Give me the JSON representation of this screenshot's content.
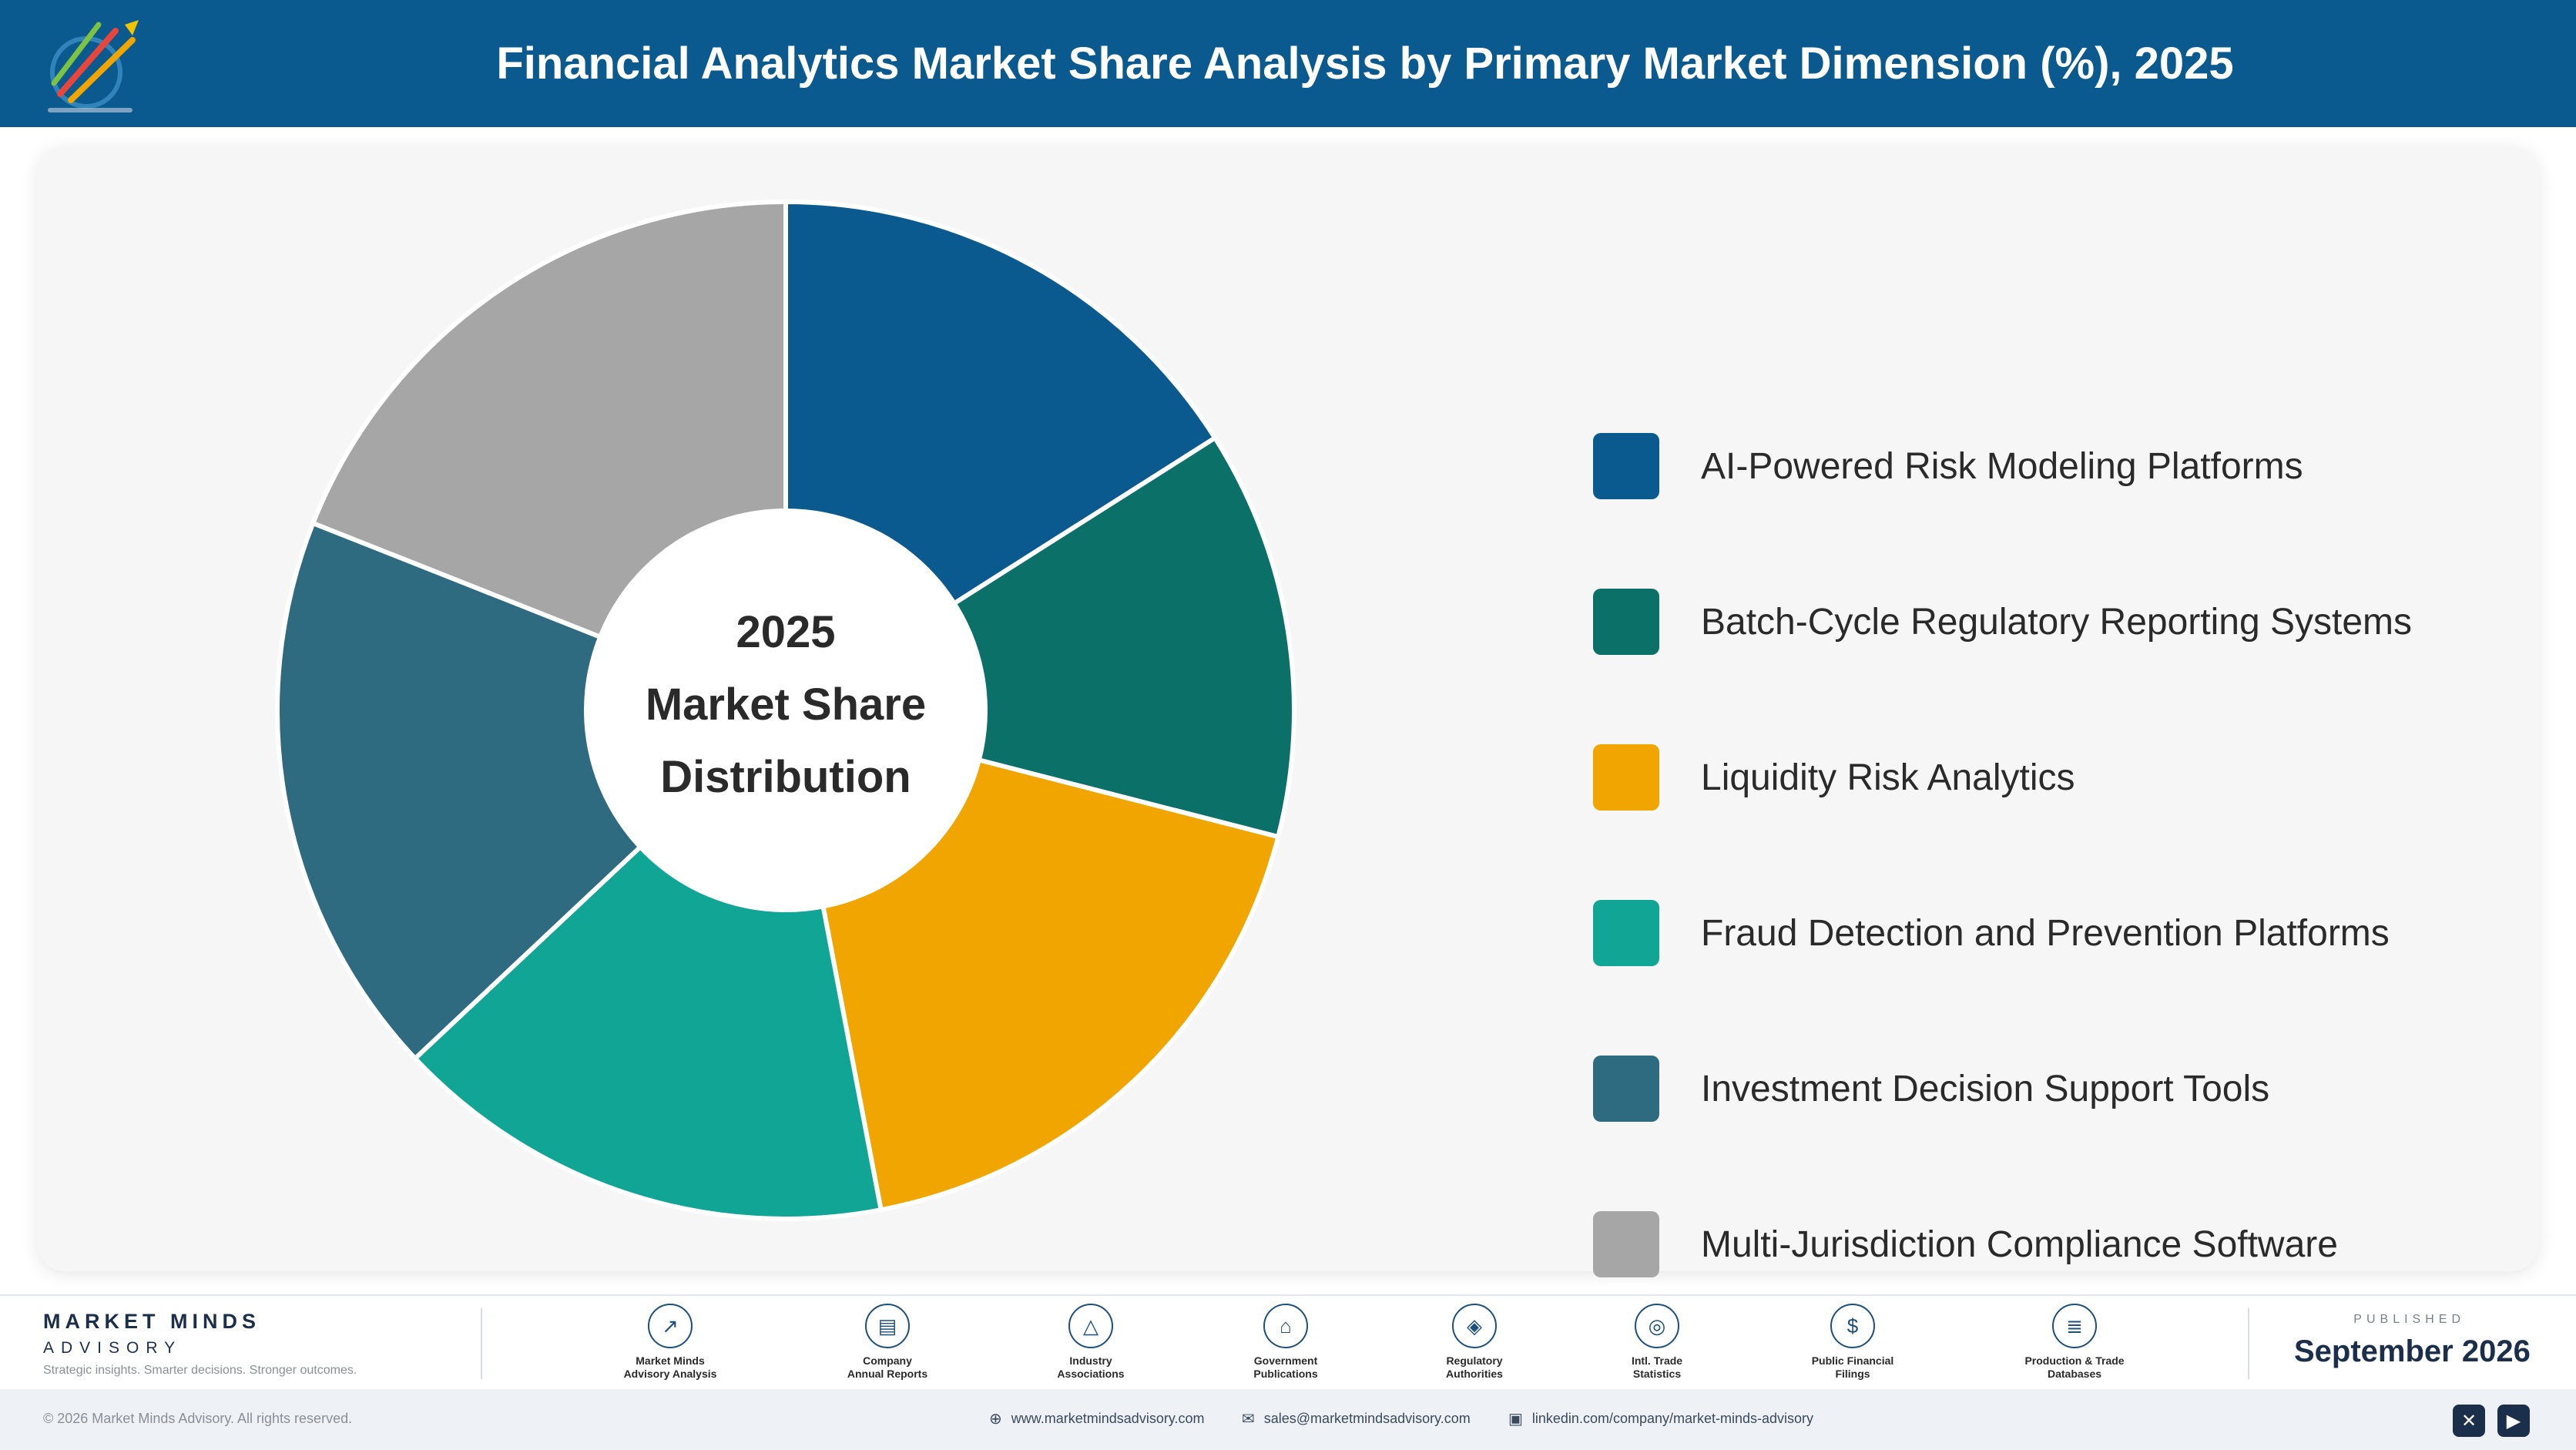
{
  "header": {
    "title": "Financial Analytics Market Share Analysis by Primary Market Dimension (%), 2025"
  },
  "chart_data": {
    "type": "pie",
    "title": "Financial Analytics Market Share Analysis by Primary Market Dimension (%), 2025",
    "center_label": [
      "2025",
      "Market Share",
      "Distribution"
    ],
    "legend_position": "right",
    "categories": [
      "AI-Powered Risk Modeling Platforms",
      "Batch-Cycle Regulatory Reporting Systems",
      "Liquidity Risk Analytics",
      "Fraud Detection and Prevention Platforms",
      "Investment Decision Support Tools",
      "Multi-Jurisdiction Compliance Software"
    ],
    "values": [
      16.0,
      13.0,
      18.0,
      16.0,
      18.0,
      19.0
    ],
    "colors": [
      "#0a5a8f",
      "#0b7168",
      "#f0a500",
      "#11a596",
      "#2e6b80",
      "#a6a6a6"
    ]
  },
  "footer": {
    "brand_name": "MARKET MINDS",
    "brand_sub": "ADVISORY",
    "brand_tagline": "Strategic insights. Smarter decisions. Stronger outcomes.",
    "sources": [
      {
        "label": "Market Minds\nAdvisory Analysis",
        "icon": "trend-icon",
        "glyph": "↗"
      },
      {
        "label": "Company\nAnnual Reports",
        "icon": "document-icon",
        "glyph": "▤"
      },
      {
        "label": "Industry\nAssociations",
        "icon": "network-icon",
        "glyph": "△"
      },
      {
        "label": "Government\nPublications",
        "icon": "government-icon",
        "glyph": "⌂"
      },
      {
        "label": "Regulatory\nAuthorities",
        "icon": "shield-icon",
        "glyph": "◈"
      },
      {
        "label": "Intl. Trade\nStatistics",
        "icon": "globe-icon",
        "glyph": "◎"
      },
      {
        "label": "Public Financial\nFilings",
        "icon": "dollar-icon",
        "glyph": "$"
      },
      {
        "label": "Production & Trade\nDatabases",
        "icon": "database-icon",
        "glyph": "≣"
      }
    ],
    "published_label": "PUBLISHED",
    "published_date": "September 2026"
  },
  "bottom_bar": {
    "copyright": "© 2026 Market Minds Advisory. All rights reserved.",
    "website": "www.marketmindsadvisory.com",
    "email": "sales@marketmindsadvisory.com",
    "linkedin": "linkedin.com/company/market-minds-advisory"
  }
}
